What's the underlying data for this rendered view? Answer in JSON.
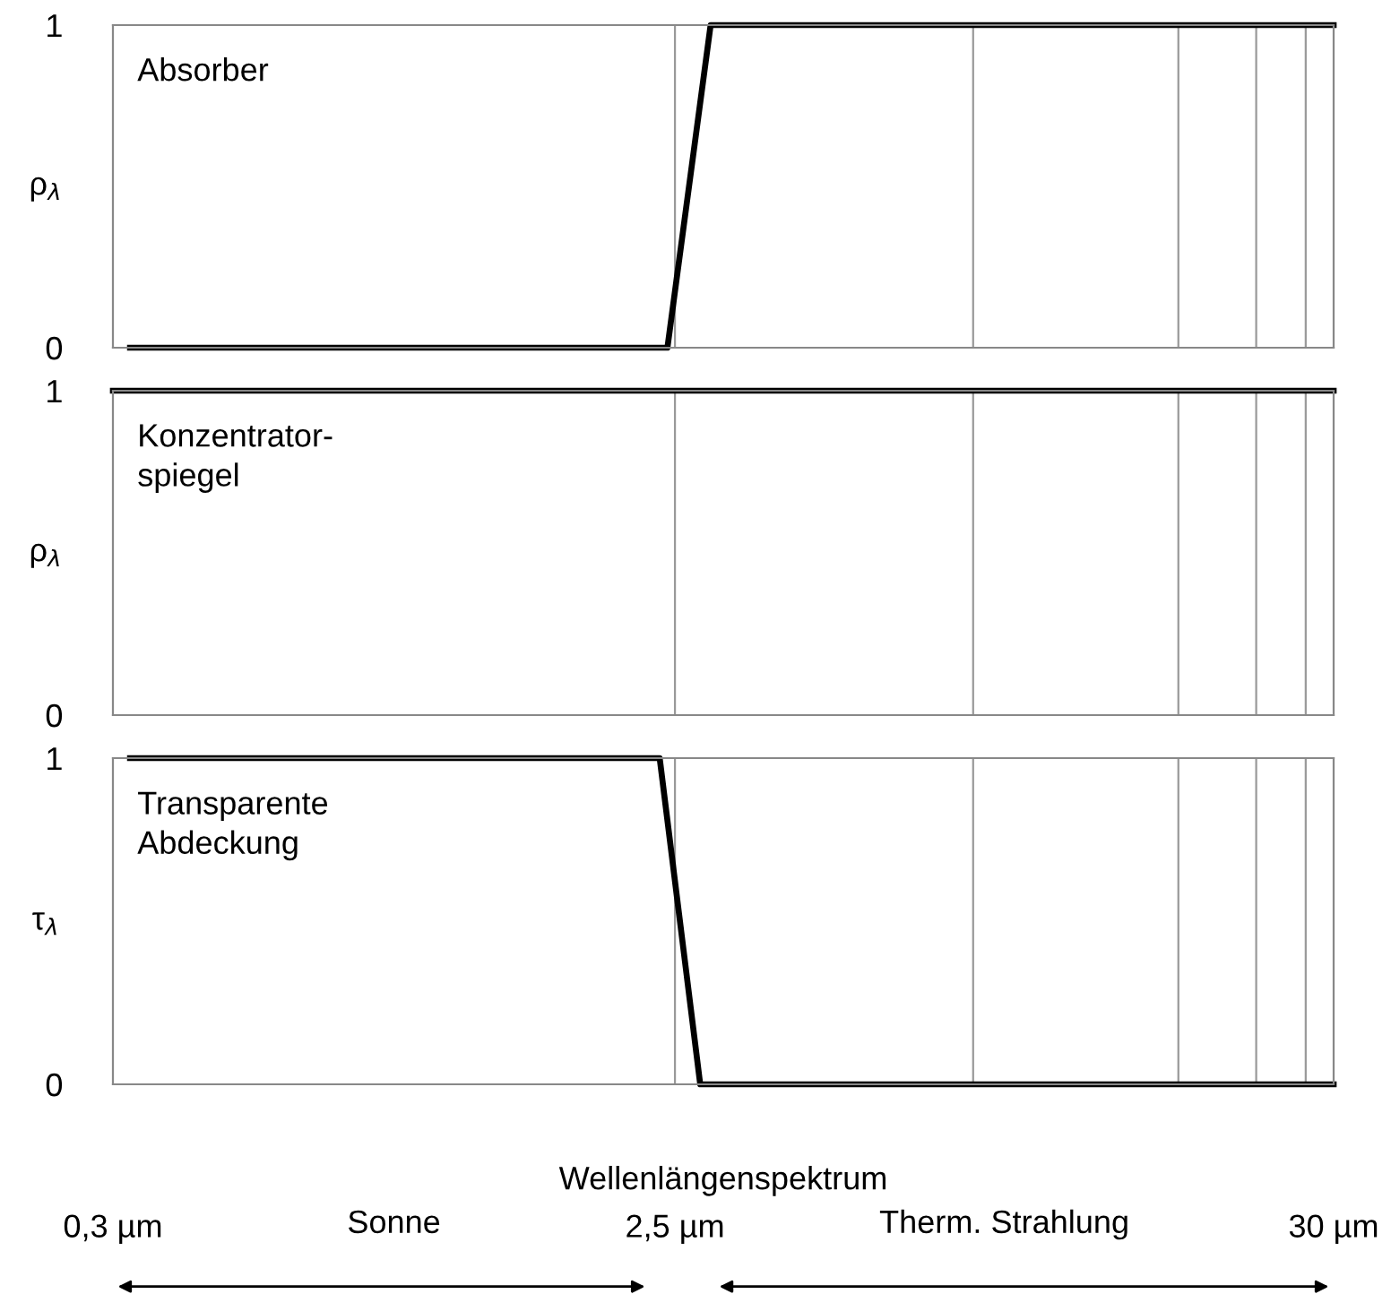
{
  "chart_data": [
    {
      "type": "line",
      "title": "Absorber",
      "ylabel": "ρ$_{λ}$",
      "log": "x",
      "tick_labels": "y",
      "xlim": [
        0.3,
        30
      ],
      "ylim": [
        0,
        1
      ],
      "yticks": [
        0,
        1
      ],
      "ref_lines": [
        {
          "axis": "x",
          "value": 2.5,
          "color": "#999999"
        },
        {
          "axis": "x",
          "value": 7.7,
          "color": "#999999"
        },
        {
          "axis": "x",
          "value": 16.7,
          "color": "#999999"
        },
        {
          "axis": "x",
          "value": 22.4,
          "color": "#999999"
        },
        {
          "axis": "x",
          "value": 27,
          "color": "#999999"
        }
      ],
      "series": [
        {
          "color": "#000000",
          "x": [
            0.32,
            2.43,
            2.86,
            30
          ],
          "values": [
            0,
            0,
            1,
            1
          ]
        }
      ]
    },
    {
      "type": "line",
      "title": "Konzentrator-\nspiegel",
      "ylabel": "ρ$_{λ}$",
      "log": "x",
      "tick_labels": "y",
      "xlim": [
        0.3,
        30
      ],
      "ylim": [
        0,
        1
      ],
      "yticks": [
        0,
        1
      ],
      "ref_lines": [
        {
          "axis": "x",
          "value": 2.5,
          "color": "#999999"
        },
        {
          "axis": "x",
          "value": 7.7,
          "color": "#999999"
        },
        {
          "axis": "x",
          "value": 16.7,
          "color": "#999999"
        },
        {
          "axis": "x",
          "value": 22.4,
          "color": "#999999"
        },
        {
          "axis": "x",
          "value": 27,
          "color": "#999999"
        }
      ],
      "series": [
        {
          "color": "#000000",
          "x": [
            0.3,
            30
          ],
          "values": [
            1,
            1
          ]
        }
      ]
    },
    {
      "type": "line",
      "title": "Transparente\nAbdeckung",
      "ylabel": "τ$_{λ}$",
      "xlabel": "Wellenlängenspektrum",
      "log": "x",
      "xlim": [
        0.3,
        30
      ],
      "ylim": [
        0,
        1
      ],
      "yticks": [
        0,
        1
      ],
      "xticks": [
        {
          "value": 0.3,
          "label": "0,3 µm"
        },
        {
          "value": 2.5,
          "label": "2,5 µm"
        },
        {
          "value": 30,
          "label": "30 µm"
        }
      ],
      "ref_lines": [
        {
          "axis": "x",
          "value": 2.5,
          "color": "#999999"
        },
        {
          "axis": "x",
          "value": 7.7,
          "color": "#999999"
        },
        {
          "axis": "x",
          "value": 16.7,
          "color": "#999999"
        },
        {
          "axis": "x",
          "value": 22.4,
          "color": "#999999"
        },
        {
          "axis": "x",
          "value": 27,
          "color": "#999999"
        }
      ],
      "annotations": [
        "Sonne",
        "Therm. Strahlung"
      ],
      "series": [
        {
          "color": "#000000",
          "x": [
            0.32,
            2.36,
            2.75,
            30
          ],
          "values": [
            1,
            1,
            0,
            0
          ]
        }
      ]
    }
  ]
}
